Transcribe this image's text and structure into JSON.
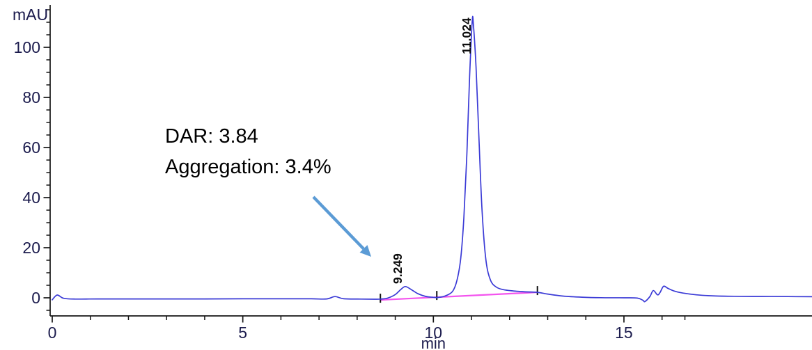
{
  "chart_data": {
    "type": "line",
    "title": "",
    "xlabel": "min",
    "ylabel": "mAU",
    "xlim": [
      0,
      19.95
    ],
    "ylim": [
      -7.2,
      116.5
    ],
    "grid": false,
    "legend_position": "none",
    "x_axis": {
      "label": "min",
      "major_ticks": [
        0,
        5,
        10,
        15
      ],
      "minor_ticks": [
        1,
        2,
        3,
        4,
        6,
        7,
        8,
        9,
        11,
        12,
        13,
        14,
        16,
        16.6
      ]
    },
    "y_axis": {
      "label": "mAU",
      "major_ticks": [
        0,
        20,
        40,
        60,
        80,
        100
      ],
      "minor_tick_step": 5,
      "minor_tick_range": [
        -5,
        115
      ]
    },
    "series": [
      {
        "name": "uv-absorbance-trace",
        "color": "#3a3ad6",
        "points": [
          [
            0,
            -0.8
          ],
          [
            0.13,
            1.1
          ],
          [
            0.3,
            -0.2
          ],
          [
            0.6,
            -0.5
          ],
          [
            1.2,
            -0.45
          ],
          [
            2.0,
            -0.45
          ],
          [
            3.0,
            -0.45
          ],
          [
            4.0,
            -0.45
          ],
          [
            5.0,
            -0.4
          ],
          [
            6.0,
            -0.4
          ],
          [
            6.8,
            -0.4
          ],
          [
            7.2,
            -0.45
          ],
          [
            7.42,
            0.5
          ],
          [
            7.65,
            -0.4
          ],
          [
            8.1,
            -0.5
          ],
          [
            8.45,
            -0.55
          ],
          [
            8.62,
            -0.5
          ],
          [
            8.8,
            -0.1
          ],
          [
            9.0,
            1.3
          ],
          [
            9.15,
            3.4
          ],
          [
            9.27,
            4.5
          ],
          [
            9.45,
            3.0
          ],
          [
            9.6,
            1.6
          ],
          [
            9.8,
            0.55
          ],
          [
            10.0,
            0.2
          ],
          [
            10.12,
            0.15
          ],
          [
            10.3,
            0.7
          ],
          [
            10.5,
            2.5
          ],
          [
            10.62,
            7
          ],
          [
            10.72,
            16
          ],
          [
            10.8,
            32
          ],
          [
            10.88,
            58
          ],
          [
            10.95,
            88
          ],
          [
            11.02,
            110.5
          ],
          [
            11.05,
            109
          ],
          [
            11.12,
            92
          ],
          [
            11.2,
            62
          ],
          [
            11.28,
            34
          ],
          [
            11.38,
            15
          ],
          [
            11.5,
            7
          ],
          [
            11.65,
            4.3
          ],
          [
            11.82,
            3.3
          ],
          [
            12.05,
            2.8
          ],
          [
            12.4,
            2.4
          ],
          [
            12.73,
            2.2
          ],
          [
            13.0,
            1.5
          ],
          [
            13.4,
            0.7
          ],
          [
            13.9,
            0.25
          ],
          [
            14.4,
            0.05
          ],
          [
            15.0,
            0
          ],
          [
            15.35,
            -0.1
          ],
          [
            15.5,
            -1.0
          ],
          [
            15.55,
            -1.5
          ],
          [
            15.68,
            0.5
          ],
          [
            15.77,
            2.9
          ],
          [
            15.88,
            1.2
          ],
          [
            15.95,
            2.2
          ],
          [
            16.04,
            4.6
          ],
          [
            16.15,
            3.8
          ],
          [
            16.3,
            2.8
          ],
          [
            16.55,
            1.9
          ],
          [
            16.9,
            1.2
          ],
          [
            17.3,
            0.8
          ],
          [
            17.9,
            0.6
          ],
          [
            18.6,
            0.55
          ],
          [
            19.3,
            0.5
          ],
          [
            19.95,
            0.45
          ]
        ]
      },
      {
        "name": "integration-baseline",
        "color": "#f353ee",
        "points": [
          [
            8.61,
            -0.85
          ],
          [
            12.73,
            2.2
          ]
        ]
      }
    ],
    "integration_markers_min": [
      8.61,
      10.09,
      12.73
    ],
    "peaks": [
      {
        "label": "9.249",
        "retention_time_min": 9.249,
        "apex_mau": 4.5
      },
      {
        "label": "11.024",
        "retention_time_min": 11.024,
        "apex_mau": 111
      }
    ]
  },
  "annotation": {
    "line1": "DAR: 3.84",
    "line2": "Aggregation: 3.4%",
    "arrow_color": "#5b9bd5"
  },
  "colors": {
    "axis": "#151515",
    "tick_labels": "#1b1b4d",
    "peak_labels": "#0d0d0d",
    "annotation_text": "#000000"
  }
}
